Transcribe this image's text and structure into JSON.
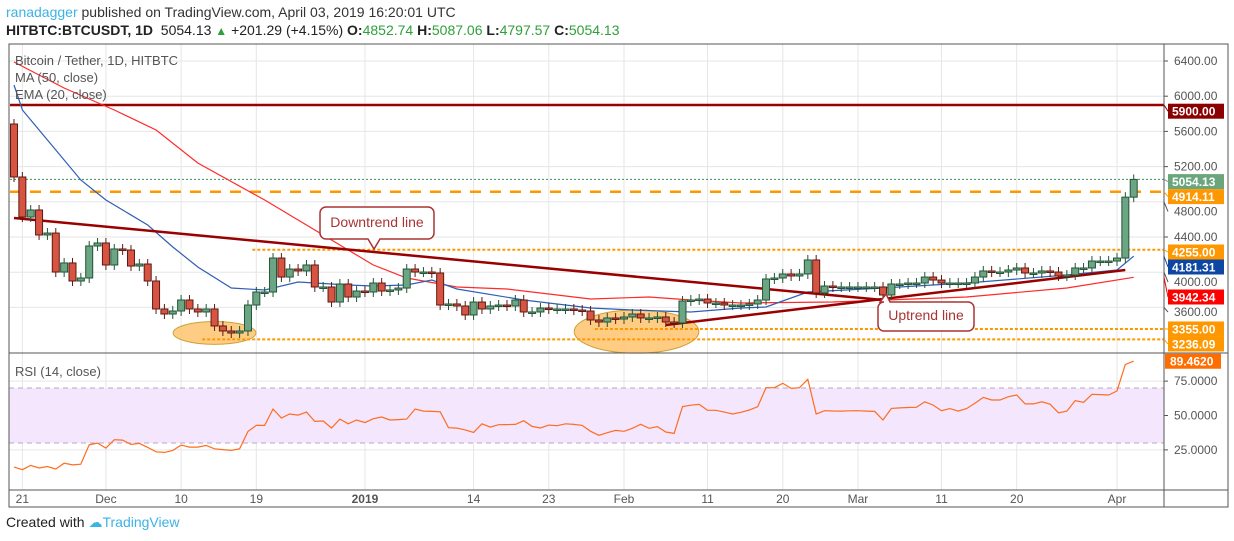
{
  "header": {
    "author": "ranadagger",
    "published": "published on TradingView.com, April 03, 2019 16:20:01 UTC",
    "symbol": "HITBTC:BTCUSDT, 1D",
    "last": "5054.13",
    "change": "+201.29 (+4.15%)",
    "o_label": "O:",
    "o": "4852.74",
    "h_label": "H:",
    "h": "5087.06",
    "l_label": "L:",
    "l": "4797.57",
    "c_label": "C:",
    "c": "5054.13"
  },
  "legend": {
    "title": "Bitcoin / Tether, 1D, HITBTC",
    "ma": "MA (50, close)",
    "ema": "EMA (20, close)",
    "rsi": "RSI (14, close)"
  },
  "annotations": {
    "downtrend": "Downtrend line",
    "uptrend": "Uptrend line"
  },
  "footer": {
    "created": "Created with",
    "brand": "TradingView"
  },
  "colors": {
    "up": "#6ba583",
    "down": "#d75442",
    "ema": "#2f5fb3",
    "ma": "#ff2a2a",
    "trend": "#990000",
    "resistance": "#990000",
    "level": "#ff9800",
    "rsi": "#ff6d1f",
    "rsi_band": "#f3e6fd"
  },
  "chart_data": [
    {
      "type": "candlestick",
      "first_date": "2018-11-20",
      "first_open": 5684,
      "closes": [
        5082,
        4627,
        4707,
        4423,
        4445,
        4002,
        4105,
        3900,
        3934,
        4298,
        4332,
        4082,
        4264,
        4252,
        4070,
        4093,
        3900,
        3582,
        3525,
        3559,
        3684,
        3582,
        3548,
        3582,
        3389,
        3332,
        3309,
        3332,
        3627,
        3775,
        3775,
        4161,
        3945,
        4036,
        4014,
        4082,
        3832,
        3832,
        3661,
        3866,
        3718,
        3786,
        3775,
        3877,
        3786,
        3798,
        3820,
        4036,
        4002,
        4002,
        3991,
        3627,
        3639,
        3616,
        3514,
        3661,
        3582,
        3616,
        3627,
        3616,
        3684,
        3548,
        3548,
        3593,
        3582,
        3582,
        3582,
        3570,
        3559,
        3457,
        3434,
        3480,
        3468,
        3491,
        3525,
        3480,
        3480,
        3491,
        3434,
        3423,
        3673,
        3684,
        3695,
        3650,
        3650,
        3627,
        3627,
        3627,
        3639,
        3684,
        3923,
        3934,
        3980,
        3957,
        3980,
        4139,
        3764,
        3843,
        3832,
        3832,
        3832,
        3832,
        3832,
        3832,
        3741,
        3866,
        3866,
        3877,
        3877,
        3945,
        3911,
        3877,
        3877,
        3877,
        3877,
        3945,
        4014,
        4002,
        4002,
        4025,
        4048,
        3991,
        3991,
        4014,
        4002,
        3957,
        3968,
        4048,
        4048,
        4127,
        4127,
        4127,
        4161,
        4852.74,
        5054.13
      ],
      "ylim": [
        3100,
        6650
      ],
      "y_ticks": [
        "6400.00",
        "6000.00",
        "5600.00",
        "5200.00",
        "4800.00",
        "4400.00",
        "4000.00",
        "3600.00"
      ],
      "x_ticks": [
        {
          "date": "2018-11-21",
          "label": "21"
        },
        {
          "date": "2018-12-01",
          "label": "Dec"
        },
        {
          "date": "2018-12-10",
          "label": "10"
        },
        {
          "date": "2018-12-19",
          "label": "19"
        },
        {
          "date": "2019-01-01",
          "label": "2019"
        },
        {
          "date": "2019-01-14",
          "label": "14"
        },
        {
          "date": "2019-01-23",
          "label": "23"
        },
        {
          "date": "2019-02-01",
          "label": "Feb"
        },
        {
          "date": "2019-02-11",
          "label": "11"
        },
        {
          "date": "2019-02-20",
          "label": "20"
        },
        {
          "date": "2019-03-01",
          "label": "Mar"
        },
        {
          "date": "2019-03-11",
          "label": "11"
        },
        {
          "date": "2019-03-20",
          "label": "20"
        },
        {
          "date": "2019-04-01",
          "label": "Apr"
        }
      ],
      "ema20": [
        [
          "2018-11-20",
          6127
        ],
        [
          "2018-11-21",
          5843
        ],
        [
          "2018-11-25",
          5389
        ],
        [
          "2018-11-28",
          5048
        ],
        [
          "2018-12-01",
          4820
        ],
        [
          "2018-12-06",
          4536
        ],
        [
          "2018-12-09",
          4286
        ],
        [
          "2018-12-12",
          4059
        ],
        [
          "2018-12-16",
          3820
        ],
        [
          "2018-12-20",
          3798
        ],
        [
          "2018-12-24",
          3889
        ],
        [
          "2018-12-30",
          3855
        ],
        [
          "2019-01-02",
          3843
        ],
        [
          "2019-01-06",
          3855
        ],
        [
          "2019-01-09",
          3911
        ],
        [
          "2019-01-12",
          3809
        ],
        [
          "2019-01-20",
          3684
        ],
        [
          "2019-01-28",
          3593
        ],
        [
          "2019-02-02",
          3570
        ],
        [
          "2019-02-09",
          3548
        ],
        [
          "2019-02-15",
          3593
        ],
        [
          "2019-02-18",
          3604
        ],
        [
          "2019-02-23",
          3775
        ],
        [
          "2019-03-04",
          3820
        ],
        [
          "2019-03-14",
          3877
        ],
        [
          "2019-03-26",
          3968
        ],
        [
          "2019-04-01",
          4025
        ],
        [
          "2019-04-03",
          4181.31
        ]
      ],
      "ma50": [
        [
          "2018-11-20",
          6389
        ],
        [
          "2018-11-26",
          6093
        ],
        [
          "2018-12-02",
          5843
        ],
        [
          "2018-12-07",
          5616
        ],
        [
          "2018-12-12",
          5241
        ],
        [
          "2018-12-20",
          4820
        ],
        [
          "2018-12-24",
          4593
        ],
        [
          "2019-01-02",
          4082
        ],
        [
          "2019-01-06",
          3934
        ],
        [
          "2019-01-12",
          3832
        ],
        [
          "2019-01-18",
          3809
        ],
        [
          "2019-01-28",
          3695
        ],
        [
          "2019-02-04",
          3718
        ],
        [
          "2019-02-09",
          3684
        ],
        [
          "2019-02-15",
          3650
        ],
        [
          "2019-02-26",
          3661
        ],
        [
          "2019-03-14",
          3718
        ],
        [
          "2019-03-26",
          3820
        ],
        [
          "2019-04-03",
          3942.34
        ]
      ],
      "downtrend_line": [
        [
          "2018-11-20",
          4616
        ],
        [
          "2019-03-04",
          3684
        ]
      ],
      "uptrend_line": [
        [
          "2019-02-06",
          3400
        ],
        [
          "2019-04-02",
          4025
        ]
      ],
      "levels": [
        {
          "price": 5900,
          "label": "5900.00",
          "style": "solid",
          "color": "#990000",
          "badge": "#8b0000",
          "from": "2018-11-20"
        },
        {
          "price": 5054.13,
          "label": "5054.13",
          "style": "dotted-green",
          "color": "#3d8f5a",
          "badge": "#6aa57e",
          "from": "2018-11-20"
        },
        {
          "price": 4914.11,
          "label": "4914.11",
          "style": "dashed",
          "color": "#ff9800",
          "badge": "#ff9800",
          "from": "2018-11-20"
        },
        {
          "price": 4255,
          "label": "4255.00",
          "style": "dotted",
          "color": "#ff9800",
          "badge": "#ff9800",
          "from": "2018-12-19"
        },
        {
          "price": 4181.31,
          "label": "4181.31",
          "style": "none",
          "color": "#0d47a1",
          "badge": "#0d47a1",
          "from": "2019-04-03"
        },
        {
          "price": 3942.34,
          "label": "3942.34",
          "style": "none",
          "color": "#ff0000",
          "badge": "#ff0000",
          "from": "2019-04-03"
        },
        {
          "price": 3355,
          "label": "3355.00",
          "style": "dotted",
          "color": "#ff9800",
          "badge": "#ff9800",
          "from": "2019-01-29"
        },
        {
          "price": 3236.09,
          "label": "3236.09",
          "style": "dotted",
          "color": "#ff9800",
          "badge": "#ff9800",
          "from": "2018-12-13"
        }
      ],
      "highlight_zones": [
        {
          "from": "2018-12-10",
          "to": "2018-12-18",
          "price_low": 3180,
          "price_high": 3440
        },
        {
          "from": "2019-01-27",
          "to": "2019-02-09",
          "price_low": 3080,
          "price_high": 3570
        }
      ]
    },
    {
      "type": "line",
      "name": "RSI (14, close)",
      "first_date": "2018-11-20",
      "values": [
        12.5,
        10.6,
        13.7,
        11.8,
        12.9,
        11,
        15.3,
        14.1,
        14.6,
        28.7,
        29.9,
        26.3,
        32.4,
        32.1,
        29,
        29.7,
        26.8,
        23.6,
        23.2,
        24.6,
        28.5,
        27,
        27,
        28.2,
        25.8,
        25.2,
        24.6,
        25.8,
        38.4,
        42.8,
        42.8,
        54.7,
        48.2,
        51.1,
        50.3,
        52.5,
        45.7,
        46,
        40.9,
        47.4,
        44,
        46.7,
        44.8,
        47.7,
        48.9,
        46.7,
        47,
        47.4,
        54.7,
        53.2,
        53,
        52.7,
        41.1,
        40.8,
        39.5,
        37.7,
        44,
        41.6,
        43.3,
        43.4,
        43.5,
        46.2,
        42.1,
        40.9,
        43,
        42.6,
        44,
        43.5,
        42.8,
        38.5,
        35.6,
        37.5,
        39.2,
        38.5,
        40.7,
        43.6,
        40.7,
        41.9,
        38,
        37,
        56.4,
        57.5,
        58.1,
        53.8,
        53.8,
        52.5,
        51.1,
        52.3,
        54,
        56.4,
        70.2,
        70.2,
        73.4,
        69.7,
        70.2,
        76.3,
        51.1,
        53.5,
        53.3,
        53.2,
        53.4,
        53.5,
        53.2,
        53,
        46.7,
        55.2,
        55.5,
        55.8,
        56,
        60,
        57.6,
        53.5,
        55,
        53.2,
        55,
        58.9,
        63.2,
        61.3,
        61.3,
        63.7,
        64.9,
        58.4,
        58.4,
        60,
        58.2,
        52,
        53.2,
        60.8,
        59.6,
        65.4,
        65.2,
        64.9,
        67.8,
        87.2,
        89.462
      ],
      "last_label": "89.4620",
      "band": [
        30,
        70
      ],
      "y_ticks": [
        "75.0000",
        "50.0000",
        "25.0000"
      ]
    }
  ]
}
